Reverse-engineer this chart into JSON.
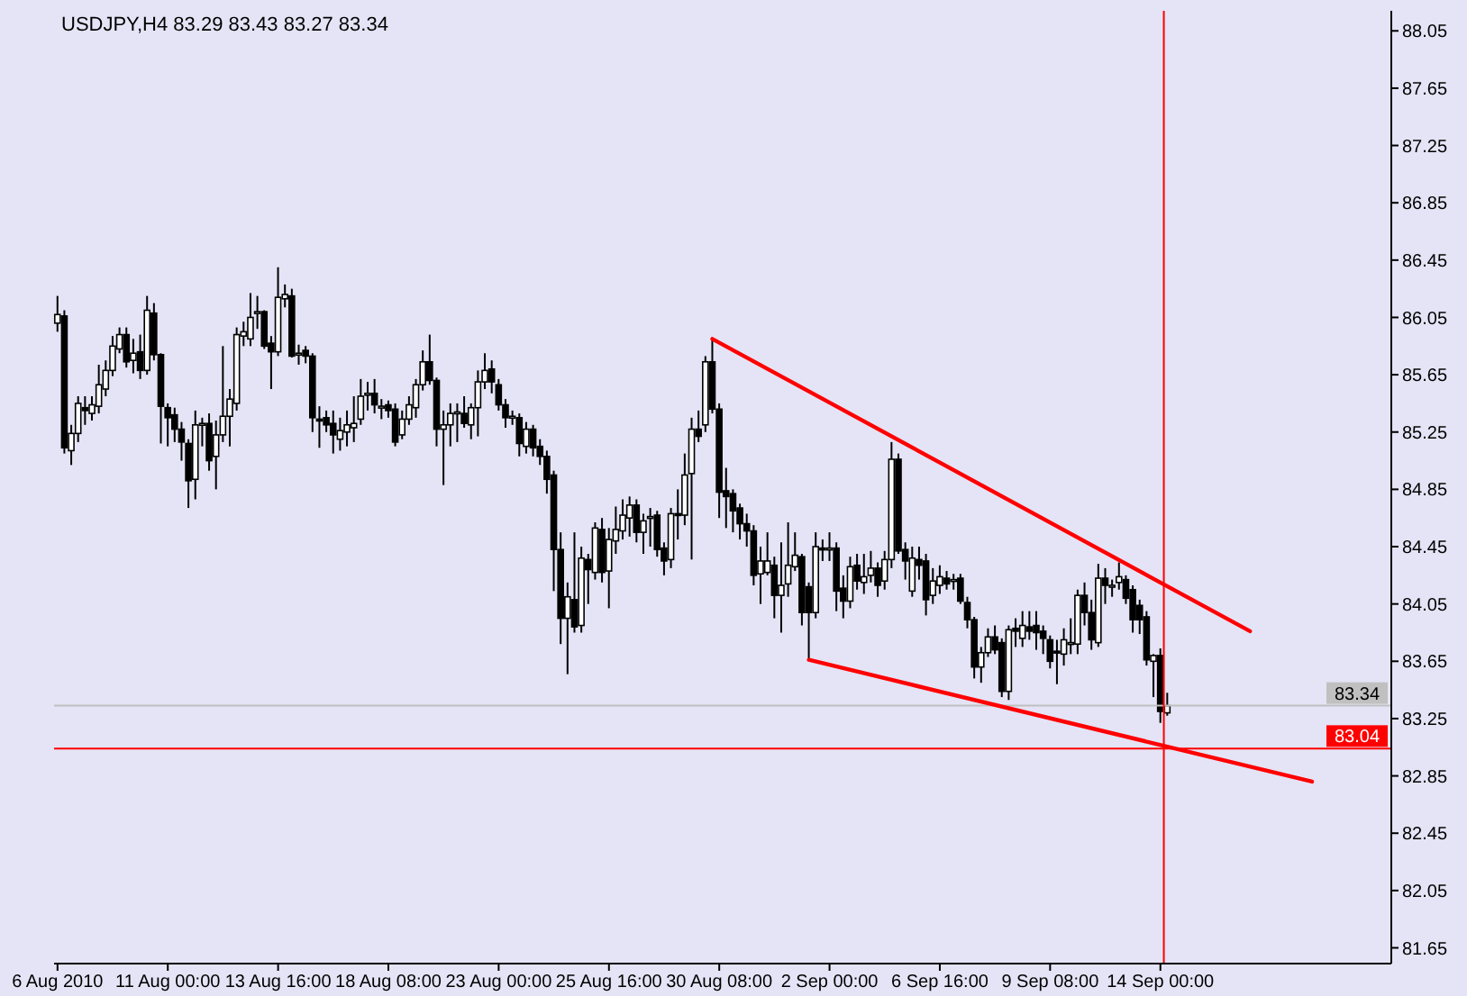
{
  "chart_data": {
    "type": "candlestick",
    "title": "USDJPY,H4  83.29 83.43 83.27 83.34",
    "categories": [
      "6 Aug 2010",
      null,
      null,
      null,
      null,
      null,
      null,
      null,
      null,
      null,
      null,
      null,
      null,
      null,
      null,
      null,
      "11 Aug 00:00",
      null,
      null,
      null,
      null,
      null,
      null,
      null,
      null,
      null,
      null,
      null,
      null,
      null,
      null,
      null,
      "13 Aug 16:00",
      null,
      null,
      null,
      null,
      null,
      null,
      null,
      null,
      null,
      null,
      null,
      null,
      null,
      null,
      null,
      "18 Aug 08:00",
      null,
      null,
      null,
      null,
      null,
      null,
      null,
      null,
      null,
      null,
      null,
      null,
      null,
      null,
      null,
      "23 Aug 00:00",
      null,
      null,
      null,
      null,
      null,
      null,
      null,
      null,
      null,
      null,
      null,
      null,
      null,
      null,
      null,
      "25 Aug 16:00",
      null,
      null,
      null,
      null,
      null,
      null,
      null,
      null,
      null,
      null,
      null,
      null,
      null,
      null,
      null,
      "30 Aug 08:00",
      null,
      null,
      null,
      null,
      null,
      null,
      null,
      null,
      null,
      null,
      null,
      null,
      null,
      null,
      null,
      "2 Sep 00:00",
      null,
      null,
      null,
      null,
      null,
      null,
      null,
      null,
      null,
      null,
      null,
      null,
      null,
      null,
      null,
      "6 Sep 16:00",
      null,
      null,
      null,
      null,
      null,
      null,
      null,
      null,
      null,
      null,
      null,
      null,
      null,
      null,
      null,
      "9 Sep 08:00",
      null,
      null,
      null,
      null,
      null,
      null,
      null,
      null,
      null,
      null,
      null,
      null,
      null,
      null,
      null,
      "14 Sep 00:00",
      null,
      null,
      null,
      null,
      null,
      null,
      null,
      null,
      null,
      null,
      null,
      null,
      null,
      null,
      null,
      null,
      null,
      null,
      null,
      null,
      null,
      null,
      null,
      null,
      null,
      null,
      null,
      null,
      null,
      null,
      null,
      null,
      null
    ],
    "ohlc": [
      [
        86.01,
        86.2,
        85.95,
        86.07
      ],
      [
        86.06,
        86.1,
        85.1,
        85.14
      ],
      [
        85.12,
        85.3,
        85.02,
        85.24
      ],
      [
        85.24,
        85.5,
        85.18,
        85.45
      ],
      [
        85.42,
        85.5,
        85.3,
        85.4
      ],
      [
        85.38,
        85.5,
        85.33,
        85.44
      ],
      [
        85.43,
        85.72,
        85.38,
        85.58
      ],
      [
        85.55,
        85.75,
        85.5,
        85.68
      ],
      [
        85.68,
        85.92,
        85.64,
        85.85
      ],
      [
        85.83,
        85.98,
        85.8,
        85.93
      ],
      [
        85.93,
        85.98,
        85.7,
        85.74
      ],
      [
        85.75,
        85.9,
        85.66,
        85.8
      ],
      [
        85.81,
        85.93,
        85.62,
        85.68
      ],
      [
        85.68,
        86.2,
        85.65,
        86.1
      ],
      [
        86.08,
        86.15,
        85.75,
        85.79
      ],
      [
        85.79,
        85.8,
        85.17,
        85.43
      ],
      [
        85.42,
        85.45,
        85.15,
        85.35
      ],
      [
        85.37,
        85.42,
        85.18,
        85.27
      ],
      [
        85.27,
        85.32,
        85.05,
        85.18
      ],
      [
        85.17,
        85.2,
        84.72,
        84.91
      ],
      [
        84.92,
        85.4,
        84.78,
        85.3
      ],
      [
        85.3,
        85.35,
        85.15,
        85.31
      ],
      [
        85.31,
        85.38,
        84.98,
        85.05
      ],
      [
        85.08,
        85.33,
        84.85,
        85.23
      ],
      [
        85.23,
        85.85,
        85.18,
        85.36
      ],
      [
        85.36,
        85.55,
        85.15,
        85.48
      ],
      [
        85.45,
        85.98,
        85.4,
        85.93
      ],
      [
        85.92,
        86.02,
        85.85,
        85.95
      ],
      [
        85.9,
        86.22,
        85.85,
        86.05
      ],
      [
        86.08,
        86.2,
        85.97,
        86.09
      ],
      [
        86.09,
        86.1,
        85.83,
        85.85
      ],
      [
        85.87,
        85.92,
        85.55,
        85.81
      ],
      [
        85.81,
        86.4,
        85.78,
        86.19
      ],
      [
        86.18,
        86.28,
        86.12,
        86.21
      ],
      [
        86.2,
        86.25,
        85.77,
        85.78
      ],
      [
        85.8,
        85.86,
        85.72,
        85.8
      ],
      [
        85.82,
        85.85,
        85.73,
        85.78
      ],
      [
        85.78,
        85.8,
        85.25,
        85.35
      ],
      [
        85.34,
        85.43,
        85.14,
        85.33
      ],
      [
        85.35,
        85.4,
        85.25,
        85.3
      ],
      [
        85.31,
        85.4,
        85.1,
        85.23
      ],
      [
        85.2,
        85.35,
        85.12,
        85.26
      ],
      [
        85.25,
        85.4,
        85.15,
        85.3
      ],
      [
        85.28,
        85.5,
        85.18,
        85.31
      ],
      [
        85.34,
        85.62,
        85.3,
        85.5
      ],
      [
        85.51,
        85.6,
        85.4,
        85.52
      ],
      [
        85.52,
        85.62,
        85.38,
        85.44
      ],
      [
        85.43,
        85.48,
        85.34,
        85.43
      ],
      [
        85.44,
        85.47,
        85.35,
        85.4
      ],
      [
        85.41,
        85.45,
        85.15,
        85.18
      ],
      [
        85.23,
        85.4,
        85.2,
        85.34
      ],
      [
        85.34,
        85.5,
        85.3,
        85.44
      ],
      [
        85.42,
        85.62,
        85.35,
        85.58
      ],
      [
        85.58,
        85.82,
        85.54,
        85.74
      ],
      [
        85.74,
        85.93,
        85.58,
        85.61
      ],
      [
        85.61,
        85.63,
        85.15,
        85.27
      ],
      [
        85.27,
        85.4,
        84.88,
        85.3
      ],
      [
        85.3,
        85.45,
        85.15,
        85.38
      ],
      [
        85.38,
        85.45,
        85.18,
        85.39
      ],
      [
        85.38,
        85.5,
        85.28,
        85.31
      ],
      [
        85.3,
        85.45,
        85.2,
        85.42
      ],
      [
        85.42,
        85.68,
        85.22,
        85.6
      ],
      [
        85.6,
        85.8,
        85.55,
        85.68
      ],
      [
        85.69,
        85.75,
        85.52,
        85.6
      ],
      [
        85.58,
        85.62,
        85.4,
        85.44
      ],
      [
        85.44,
        85.48,
        85.28,
        85.35
      ],
      [
        85.36,
        85.4,
        85.3,
        85.36
      ],
      [
        85.35,
        85.38,
        85.08,
        85.17
      ],
      [
        85.15,
        85.32,
        85.1,
        85.27
      ],
      [
        85.27,
        85.3,
        85.08,
        85.14
      ],
      [
        85.15,
        85.2,
        85.02,
        85.08
      ],
      [
        85.08,
        85.12,
        84.82,
        84.92
      ],
      [
        84.95,
        84.98,
        84.14,
        84.43
      ],
      [
        84.43,
        84.55,
        83.77,
        83.95
      ],
      [
        83.95,
        84.2,
        83.56,
        84.1
      ],
      [
        84.08,
        84.55,
        83.85,
        83.89
      ],
      [
        83.9,
        84.45,
        83.85,
        84.37
      ],
      [
        84.36,
        84.4,
        84.05,
        84.29
      ],
      [
        84.27,
        84.62,
        84.22,
        84.58
      ],
      [
        84.57,
        84.65,
        84.2,
        84.27
      ],
      [
        84.28,
        84.58,
        84.02,
        84.5
      ],
      [
        84.49,
        84.73,
        84.4,
        84.57
      ],
      [
        84.56,
        84.78,
        84.5,
        84.67
      ],
      [
        84.65,
        84.8,
        84.52,
        84.74
      ],
      [
        84.74,
        84.78,
        84.48,
        84.55
      ],
      [
        84.55,
        84.68,
        84.4,
        84.63
      ],
      [
        84.65,
        84.72,
        84.45,
        84.66
      ],
      [
        84.67,
        84.7,
        84.38,
        84.43
      ],
      [
        84.44,
        84.48,
        84.25,
        84.35
      ],
      [
        84.36,
        84.72,
        84.3,
        84.68
      ],
      [
        84.68,
        84.85,
        84.5,
        84.67
      ],
      [
        84.67,
        85.1,
        84.6,
        84.95
      ],
      [
        84.96,
        85.35,
        84.36,
        85.27
      ],
      [
        85.27,
        85.4,
        85.18,
        85.22
      ],
      [
        85.3,
        85.78,
        85.25,
        85.74
      ],
      [
        85.74,
        85.9,
        85.38,
        85.41
      ],
      [
        85.41,
        85.45,
        84.65,
        84.83
      ],
      [
        84.84,
        85,
        84.58,
        84.8
      ],
      [
        84.82,
        84.85,
        84.55,
        84.7
      ],
      [
        84.72,
        84.75,
        84.5,
        84.61
      ],
      [
        84.61,
        84.68,
        84.45,
        84.56
      ],
      [
        84.56,
        84.6,
        84.18,
        84.25
      ],
      [
        84.26,
        84.45,
        84.05,
        84.35
      ],
      [
        84.27,
        84.55,
        84.25,
        84.35
      ],
      [
        84.32,
        84.38,
        83.95,
        84.11
      ],
      [
        84.11,
        84.48,
        83.85,
        84.18
      ],
      [
        84.19,
        84.62,
        84.1,
        84.32
      ],
      [
        84.31,
        84.55,
        84.28,
        84.39
      ],
      [
        84.38,
        84.4,
        83.9,
        83.99
      ],
      [
        84.17,
        84.2,
        83.66,
        83.99
      ],
      [
        83.99,
        84.55,
        83.95,
        84.45
      ],
      [
        84.44,
        84.5,
        84.35,
        84.43
      ],
      [
        84.43,
        84.55,
        84.35,
        84.44
      ],
      [
        84.44,
        84.48,
        84,
        84.14
      ],
      [
        84.16,
        84.25,
        83.95,
        84.07
      ],
      [
        84.07,
        84.38,
        84.02,
        84.31
      ],
      [
        84.32,
        84.4,
        84.15,
        84.21
      ],
      [
        84.2,
        84.4,
        84.12,
        84.24
      ],
      [
        84.25,
        84.42,
        84.2,
        84.3
      ],
      [
        84.3,
        84.34,
        84.1,
        84.18
      ],
      [
        84.21,
        84.42,
        84.15,
        84.36
      ],
      [
        84.36,
        85.18,
        84.3,
        85.06
      ],
      [
        85.06,
        85.1,
        84.4,
        84.42
      ],
      [
        84.43,
        84.48,
        84.22,
        84.35
      ],
      [
        84.14,
        84.45,
        84.1,
        84.37
      ],
      [
        84.36,
        84.45,
        84.22,
        84.32
      ],
      [
        84.35,
        84.4,
        83.97,
        84.08
      ],
      [
        84.11,
        84.3,
        84.05,
        84.21
      ],
      [
        84.18,
        84.32,
        84.12,
        84.24
      ],
      [
        84.23,
        84.28,
        84.15,
        84.19
      ],
      [
        84.22,
        84.26,
        84.15,
        84.22
      ],
      [
        84.23,
        84.26,
        84.05,
        84.07
      ],
      [
        84.06,
        84.1,
        83.88,
        83.94
      ],
      [
        83.94,
        83.96,
        83.53,
        83.61
      ],
      [
        83.61,
        83.75,
        83.5,
        83.71
      ],
      [
        83.71,
        83.88,
        83.68,
        83.82
      ],
      [
        83.82,
        83.9,
        83.7,
        83.73
      ],
      [
        83.78,
        83.81,
        83.4,
        83.44
      ],
      [
        83.44,
        83.9,
        83.38,
        83.87
      ],
      [
        83.88,
        83.95,
        83.75,
        83.86
      ],
      [
        83.81,
        84,
        83.75,
        83.9
      ],
      [
        83.89,
        84,
        83.8,
        83.86
      ],
      [
        83.9,
        84,
        83.73,
        83.85
      ],
      [
        83.86,
        83.9,
        83.7,
        83.81
      ],
      [
        83.8,
        83.83,
        83.6,
        83.65
      ],
      [
        83.72,
        83.8,
        83.49,
        83.71
      ],
      [
        83.7,
        83.88,
        83.62,
        83.8
      ],
      [
        83.78,
        83.95,
        83.7,
        83.78
      ],
      [
        83.77,
        84.15,
        83.7,
        84.11
      ],
      [
        84.11,
        84.2,
        83.9,
        83.99
      ],
      [
        83.99,
        84.08,
        83.73,
        83.8
      ],
      [
        83.78,
        84.33,
        83.75,
        84.23
      ],
      [
        84.23,
        84.3,
        84.05,
        84.18
      ],
      [
        84.18,
        84.22,
        84.1,
        84.18
      ],
      [
        84.2,
        84.34,
        84.15,
        84.24
      ],
      [
        84.22,
        84.25,
        84.05,
        84.09
      ],
      [
        84.15,
        84.18,
        83.85,
        83.94
      ],
      [
        84.04,
        84.08,
        83.84,
        83.94
      ],
      [
        83.96,
        84,
        83.62,
        83.66
      ],
      [
        83.65,
        83.7,
        83.4,
        83.69
      ],
      [
        83.69,
        83.74,
        83.22,
        83.3
      ],
      [
        83.29,
        83.43,
        83.27,
        83.34
      ],
      null,
      null,
      null,
      null,
      null,
      null,
      null,
      null,
      null,
      null,
      null,
      null,
      null,
      null,
      null,
      null,
      null,
      null,
      null,
      null,
      null,
      null,
      null,
      null,
      null,
      null,
      null,
      null,
      null,
      null,
      null,
      null
    ],
    "series": [
      {
        "type": "line",
        "color": "#ff0000",
        "values": [
          null,
          null,
          null,
          null,
          null,
          null,
          null,
          null,
          null,
          null,
          null,
          null,
          null,
          null,
          null,
          null,
          null,
          null,
          null,
          null,
          null,
          null,
          null,
          null,
          null,
          null,
          null,
          null,
          null,
          null,
          null,
          null,
          null,
          null,
          null,
          null,
          null,
          null,
          null,
          null,
          null,
          null,
          null,
          null,
          null,
          null,
          null,
          null,
          null,
          null,
          null,
          null,
          null,
          null,
          null,
          null,
          null,
          null,
          null,
          null,
          null,
          null,
          null,
          null,
          null,
          null,
          null,
          null,
          null,
          null,
          null,
          null,
          null,
          null,
          null,
          null,
          null,
          null,
          null,
          null,
          null,
          null,
          null,
          null,
          null,
          null,
          null,
          null,
          null,
          null,
          null,
          null,
          null,
          null,
          null,
          85.9,
          null,
          null,
          null,
          null,
          null,
          null,
          null,
          null,
          null,
          null,
          null,
          null,
          null,
          null,
          null,
          null,
          null,
          null,
          null,
          null,
          null,
          null,
          null,
          null,
          null,
          null,
          null,
          null,
          null,
          null,
          null,
          null,
          null,
          null,
          null,
          null,
          null,
          null,
          null,
          null,
          null,
          null,
          null,
          null,
          null,
          null,
          null,
          null,
          null,
          null,
          null,
          null,
          null,
          null,
          null,
          null,
          null,
          null,
          null,
          null,
          null,
          null,
          null,
          null,
          null,
          null,
          null,
          null,
          null,
          null,
          null,
          null,
          null,
          null,
          null,
          null,
          null,
          83.86,
          null,
          null,
          null,
          null,
          null,
          null,
          null,
          null,
          null,
          null,
          null,
          null,
          null,
          null,
          null,
          null,
          null,
          null,
          null,
          null
        ]
      },
      {
        "type": "line",
        "color": "#ff0000",
        "values": [
          null,
          null,
          null,
          null,
          null,
          null,
          null,
          null,
          null,
          null,
          null,
          null,
          null,
          null,
          null,
          null,
          null,
          null,
          null,
          null,
          null,
          null,
          null,
          null,
          null,
          null,
          null,
          null,
          null,
          null,
          null,
          null,
          null,
          null,
          null,
          null,
          null,
          null,
          null,
          null,
          null,
          null,
          null,
          null,
          null,
          null,
          null,
          null,
          null,
          null,
          null,
          null,
          null,
          null,
          null,
          null,
          null,
          null,
          null,
          null,
          null,
          null,
          null,
          null,
          null,
          null,
          null,
          null,
          null,
          null,
          null,
          null,
          null,
          null,
          null,
          null,
          null,
          null,
          null,
          null,
          null,
          null,
          null,
          null,
          null,
          null,
          null,
          null,
          null,
          null,
          null,
          null,
          null,
          null,
          null,
          null,
          null,
          null,
          null,
          null,
          null,
          null,
          null,
          null,
          null,
          null,
          null,
          null,
          null,
          83.66,
          null,
          null,
          null,
          null,
          null,
          null,
          null,
          null,
          null,
          null,
          null,
          null,
          null,
          null,
          null,
          null,
          null,
          null,
          null,
          null,
          null,
          null,
          null,
          null,
          null,
          null,
          null,
          null,
          null,
          null,
          null,
          null,
          null,
          null,
          null,
          null,
          null,
          null,
          null,
          null,
          null,
          null,
          null,
          null,
          null,
          null,
          null,
          null,
          null,
          null,
          null,
          null,
          null,
          null,
          null,
          null,
          null,
          null,
          null,
          null,
          null,
          null,
          null,
          null,
          null,
          null,
          null,
          null,
          null,
          null,
          null,
          null,
          82.81,
          null,
          null,
          null,
          null,
          null,
          null,
          null,
          null,
          null,
          null,
          null
        ]
      }
    ],
    "ylim": [
      81.54,
      88.19
    ],
    "yticks": [
      81.65,
      82.05,
      82.45,
      82.85,
      83.25,
      83.65,
      84.05,
      84.45,
      84.85,
      85.25,
      85.65,
      86.05,
      86.45,
      86.85,
      87.25,
      87.65,
      88.05
    ],
    "ref_lines": [
      {
        "axis": "y",
        "value": 83.34,
        "label": "83.34",
        "color": "#c0c0c0"
      },
      {
        "axis": "y",
        "value": 83.04,
        "label": "83.04",
        "color": "#ff0000"
      },
      {
        "axis": "x",
        "value": "14 Sep 00:00",
        "color": "#ff0000"
      }
    ]
  }
}
